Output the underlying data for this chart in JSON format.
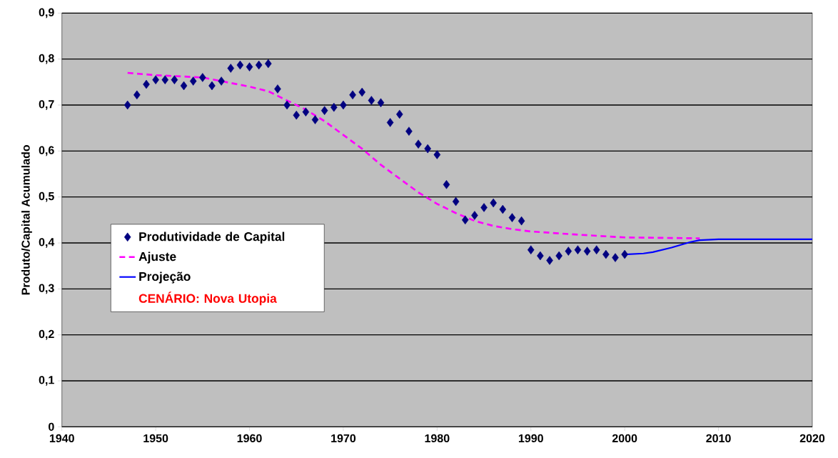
{
  "chart_data": {
    "type": "scatter",
    "ylabel": "Produto/Capital Acumulado",
    "xlim": [
      1940,
      2020
    ],
    "xticks": [
      1940,
      1950,
      1960,
      1970,
      1980,
      1990,
      2000,
      2010,
      2020
    ],
    "ylim": [
      0,
      0.9
    ],
    "yticks": [
      0,
      {
        "value": 0.1,
        "label": "0,1"
      },
      {
        "value": 0.2,
        "label": "0,2"
      },
      {
        "value": 0.3,
        "label": "0,3"
      },
      {
        "value": 0.4,
        "label": "0,4"
      },
      {
        "value": 0.5,
        "label": "0,5"
      },
      {
        "value": 0.6,
        "label": "0,6"
      },
      {
        "value": 0.7,
        "label": "0,7"
      },
      {
        "value": 0.8,
        "label": "0,8"
      },
      {
        "value": 0.9,
        "label": "0,9"
      }
    ],
    "grid": "y",
    "legend": "left",
    "annotations": [
      "CENÁRIO: Nova Utopia"
    ],
    "series": [
      {
        "name": "Produtividade de Capital",
        "marker": "diamond",
        "color": "#000080",
        "x": [
          1947,
          1948,
          1949,
          1950,
          1951,
          1952,
          1953,
          1954,
          1955,
          1956,
          1957,
          1958,
          1959,
          1960,
          1961,
          1962,
          1963,
          1964,
          1965,
          1966,
          1967,
          1968,
          1969,
          1970,
          1971,
          1972,
          1973,
          1974,
          1975,
          1976,
          1977,
          1978,
          1979,
          1980,
          1981,
          1982,
          1983,
          1984,
          1985,
          1986,
          1987,
          1988,
          1989,
          1990,
          1991,
          1992,
          1993,
          1994,
          1995,
          1996,
          1997,
          1998,
          1999,
          2000
        ],
        "values": [
          0.7,
          0.722,
          0.745,
          0.755,
          0.755,
          0.755,
          0.742,
          0.752,
          0.76,
          0.742,
          0.752,
          0.78,
          0.787,
          0.783,
          0.787,
          0.79,
          0.735,
          0.7,
          0.678,
          0.685,
          0.668,
          0.688,
          0.695,
          0.7,
          0.722,
          0.728,
          0.71,
          0.705,
          0.662,
          0.68,
          0.643,
          0.615,
          0.605,
          0.592,
          0.527,
          0.49,
          0.45,
          0.46,
          0.477,
          0.487,
          0.473,
          0.455,
          0.448,
          0.385,
          0.372,
          0.362,
          0.372,
          0.382,
          0.385,
          0.382,
          0.385,
          0.375,
          0.368,
          0.375
        ]
      },
      {
        "name": "Ajuste",
        "type": "line",
        "line_style": "dashed",
        "color": "#ff00ff",
        "x": [
          1947,
          1950,
          1955,
          1958,
          1960,
          1962,
          1964,
          1966,
          1968,
          1970,
          1972,
          1974,
          1976,
          1978,
          1980,
          1982,
          1984,
          1986,
          1988,
          1990,
          1995,
          2000,
          2008
        ],
        "values": [
          0.77,
          0.765,
          0.76,
          0.748,
          0.74,
          0.73,
          0.71,
          0.69,
          0.665,
          0.635,
          0.605,
          0.57,
          0.54,
          0.51,
          0.485,
          0.465,
          0.448,
          0.437,
          0.43,
          0.425,
          0.418,
          0.412,
          0.41
        ]
      },
      {
        "name": "Projeção",
        "type": "line",
        "line_style": "solid",
        "color": "#0000ff",
        "x": [
          2000,
          2002,
          2003,
          2005,
          2007,
          2008,
          2010,
          2020
        ],
        "values": [
          0.375,
          0.377,
          0.38,
          0.39,
          0.402,
          0.406,
          0.408,
          0.408
        ]
      }
    ]
  }
}
